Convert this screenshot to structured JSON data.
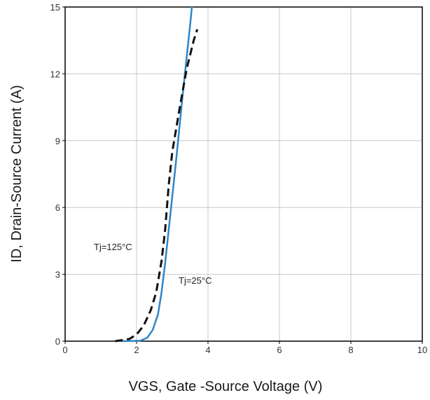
{
  "chart_data": {
    "type": "line",
    "title": "",
    "xlabel": "VGS, Gate -Source Voltage (V)",
    "ylabel": "ID, Drain-Source Current (A)",
    "xlim": [
      0,
      10
    ],
    "ylim": [
      0,
      15
    ],
    "x_ticks": [
      "0",
      "2",
      "4",
      "6",
      "8",
      "10"
    ],
    "y_ticks": [
      "0",
      "3",
      "6",
      "9",
      "12",
      "15"
    ],
    "grid": true,
    "series": [
      {
        "name": "Tj=25°C",
        "color": "#2e86c8",
        "style": "solid",
        "points": [
          [
            1.6,
            0.0
          ],
          [
            2.1,
            0.02
          ],
          [
            2.3,
            0.15
          ],
          [
            2.45,
            0.5
          ],
          [
            2.6,
            1.2
          ],
          [
            2.7,
            2.2
          ],
          [
            2.8,
            3.5
          ],
          [
            2.9,
            5.0
          ],
          [
            3.0,
            6.5
          ],
          [
            3.1,
            8.0
          ],
          [
            3.2,
            9.6
          ],
          [
            3.3,
            11.2
          ],
          [
            3.4,
            12.7
          ],
          [
            3.5,
            14.2
          ],
          [
            3.55,
            15.0
          ]
        ]
      },
      {
        "name": "Tj=125°C",
        "color": "#111111",
        "style": "dashed",
        "points": [
          [
            1.4,
            0.0
          ],
          [
            1.8,
            0.1
          ],
          [
            2.0,
            0.3
          ],
          [
            2.2,
            0.7
          ],
          [
            2.4,
            1.4
          ],
          [
            2.55,
            2.2
          ],
          [
            2.7,
            3.6
          ],
          [
            2.8,
            5.0
          ],
          [
            2.9,
            7.0
          ],
          [
            3.0,
            8.5
          ],
          [
            3.2,
            10.4
          ],
          [
            3.4,
            12.2
          ],
          [
            3.6,
            13.5
          ],
          [
            3.7,
            14.0
          ]
        ]
      }
    ]
  }
}
